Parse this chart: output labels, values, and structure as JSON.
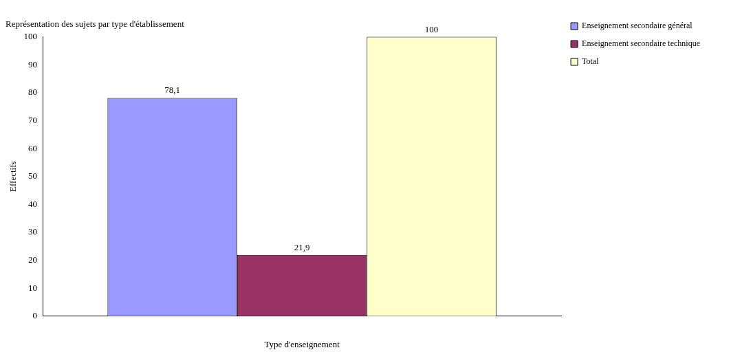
{
  "chart_data": {
    "type": "bar",
    "title": "Représentation des sujets par type d'établissement",
    "xlabel": "Type d'enseignement",
    "ylabel": "Effectifs",
    "categories": [
      null
    ],
    "series": [
      {
        "name": "Enseignement secondaire général",
        "color": "#9999ff",
        "values": [
          78.1
        ],
        "value_labels": [
          "78,1"
        ]
      },
      {
        "name": "Enseignement secondaire technique",
        "color": "#993366",
        "values": [
          21.9
        ],
        "value_labels": [
          "21,9"
        ]
      },
      {
        "name": "Total",
        "color": "#ffffcc",
        "values": [
          100
        ],
        "value_labels": [
          "100"
        ]
      }
    ],
    "ylim": [
      0,
      100
    ],
    "yticks": [
      0,
      10,
      20,
      30,
      40,
      50,
      60,
      70,
      80,
      90,
      100
    ],
    "legend": "top right"
  }
}
